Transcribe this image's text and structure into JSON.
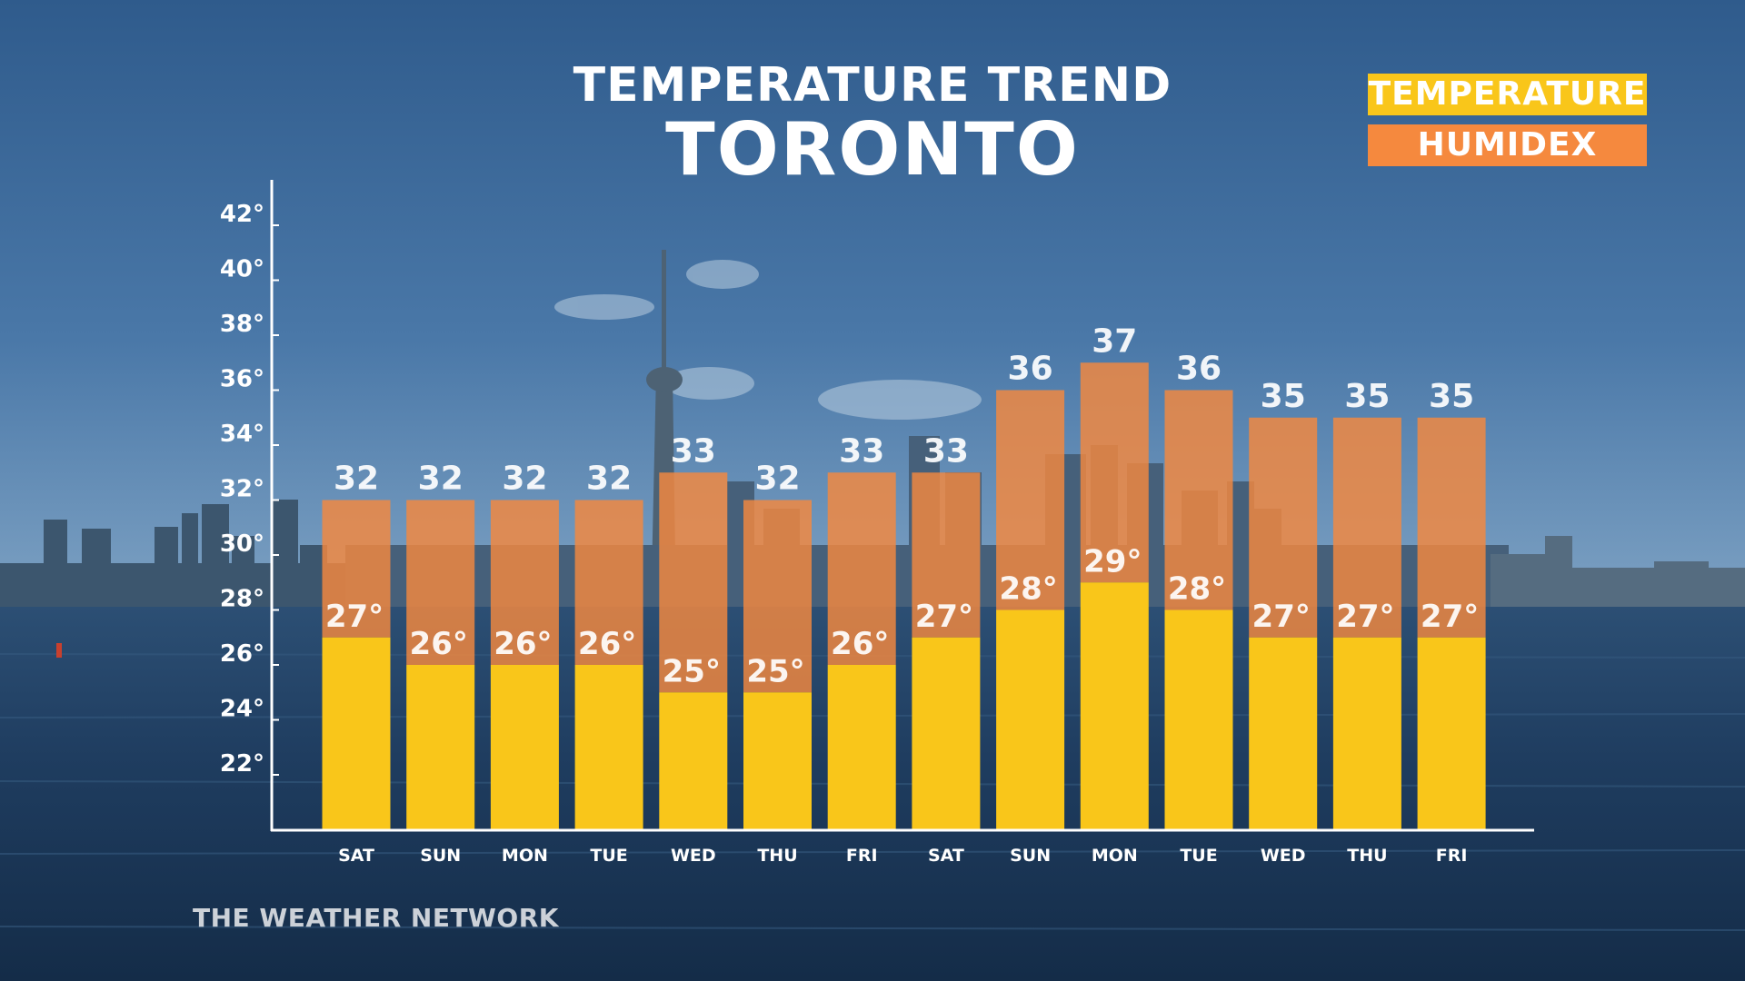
{
  "title": "TEMPERATURE TREND",
  "subtitle": "TORONTO",
  "watermark": "THE WEATHER NETWORK",
  "legend": [
    {
      "label": "TEMPERATURE",
      "color": "#f9c61a"
    },
    {
      "label": "HUMIDEX",
      "color": "#f5893e"
    }
  ],
  "colors": {
    "temperature": "#f9c61a",
    "humidex": "#f5893e",
    "sky": "#3d6a9c",
    "water": "#1d3a5a"
  },
  "chart_data": {
    "type": "bar",
    "categories": [
      "SAT",
      "SUN",
      "MON",
      "TUE",
      "WED",
      "THU",
      "FRI",
      "SAT",
      "SUN",
      "MON",
      "TUE",
      "WED",
      "THU",
      "FRI"
    ],
    "series": [
      {
        "name": "TEMPERATURE",
        "values": [
          27,
          26,
          26,
          26,
          25,
          25,
          26,
          27,
          28,
          29,
          28,
          27,
          27,
          27
        ],
        "labels": [
          "27°",
          "26°",
          "26°",
          "26°",
          "25°",
          "25°",
          "26°",
          "27°",
          "28°",
          "29°",
          "28°",
          "27°",
          "27°",
          "27°"
        ]
      },
      {
        "name": "HUMIDEX",
        "values": [
          32,
          32,
          32,
          32,
          33,
          32,
          33,
          33,
          36,
          37,
          36,
          35,
          35,
          35
        ],
        "labels": [
          "32",
          "32",
          "32",
          "32",
          "33",
          "32",
          "33",
          "33",
          "36",
          "37",
          "36",
          "35",
          "35",
          "35"
        ]
      }
    ],
    "yticks": [
      {
        "value": 22,
        "label": "22°"
      },
      {
        "value": 24,
        "label": "24°"
      },
      {
        "value": 26,
        "label": "26°"
      },
      {
        "value": 28,
        "label": "28°"
      },
      {
        "value": 30,
        "label": "30°"
      },
      {
        "value": 32,
        "label": "32°"
      },
      {
        "value": 34,
        "label": "34°"
      },
      {
        "value": 36,
        "label": "36°"
      },
      {
        "value": 38,
        "label": "38°"
      },
      {
        "value": 40,
        "label": "40°"
      },
      {
        "value": 42,
        "label": "42°"
      }
    ],
    "ylim": [
      20,
      44
    ],
    "grid": false,
    "legend_position": "top-right"
  }
}
